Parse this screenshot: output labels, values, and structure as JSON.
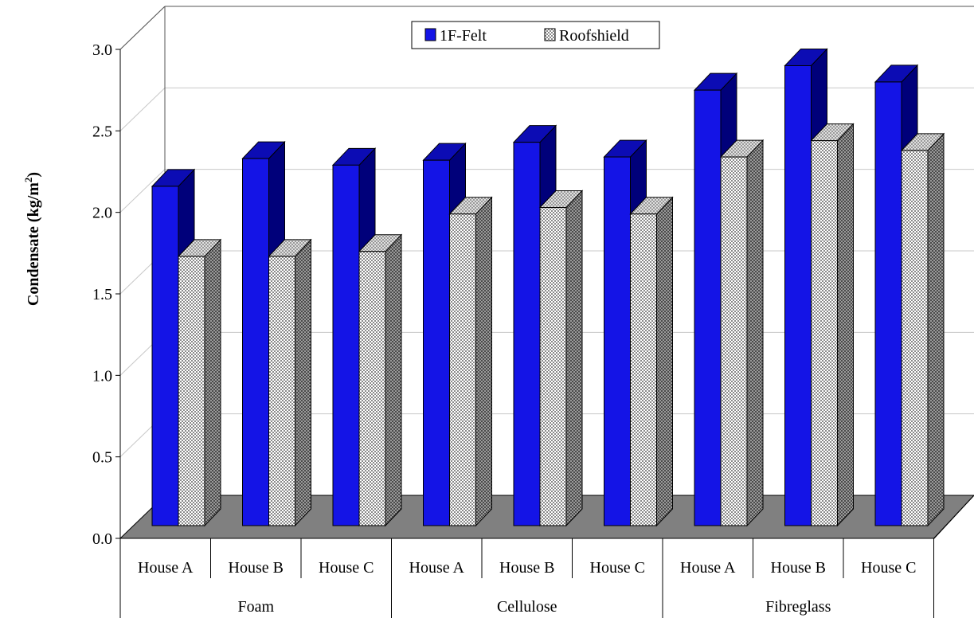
{
  "chart_data": {
    "type": "bar",
    "style": "3d-clustered",
    "ylabel": "Condensate (kg/m²)",
    "ylabel_main": "Condensate (kg/m",
    "ylabel_sup": "2",
    "ylabel_close": ")",
    "ylim": [
      0,
      3.0
    ],
    "yticks": [
      "0.0",
      "0.5",
      "1.0",
      "1.5",
      "2.0",
      "2.5",
      "3.0"
    ],
    "grid": true,
    "legend_position": "top-center",
    "categories": [
      "House A",
      "House B",
      "House C",
      "House A",
      "House B",
      "House C",
      "House A",
      "House B",
      "House C"
    ],
    "groups": [
      "Foam",
      "Cellulose",
      "Fibreglass"
    ],
    "series": [
      {
        "name": "1F-Felt",
        "color": "#1414e6",
        "pattern": "solid",
        "values": [
          2.16,
          2.33,
          2.29,
          2.32,
          2.43,
          2.34,
          2.75,
          2.9,
          2.8
        ]
      },
      {
        "name": "Roofshield",
        "color": "#ffffff",
        "pattern": "checker",
        "values": [
          1.73,
          1.73,
          1.76,
          1.99,
          2.03,
          1.99,
          2.34,
          2.44,
          2.38
        ]
      }
    ],
    "colors": {
      "floor": "#808080",
      "side_dark": "#00007a",
      "top_blue": "#0c0cb4",
      "pattern_side": "#8c8c8c"
    }
  }
}
